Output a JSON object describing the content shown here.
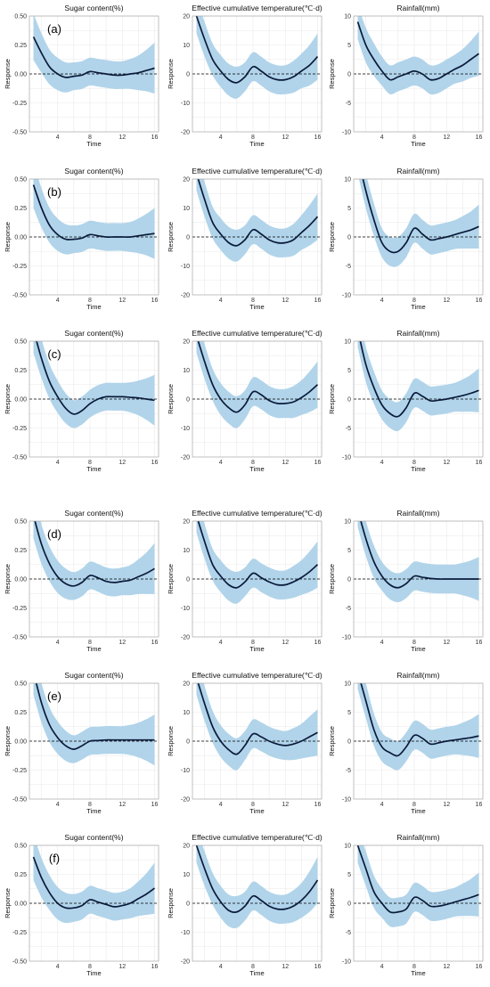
{
  "chart_data": {
    "type": "area",
    "description_rows": [
      "(a)",
      "(b)",
      "(c)",
      "(d)",
      "(e)",
      "(f)"
    ],
    "columns": [
      {
        "title": "Sugar content(%)",
        "ylim": [
          -0.5,
          0.5
        ],
        "yticks": [
          "0.50",
          "0.25",
          "0.00",
          "-0.25",
          "-0.50"
        ],
        "ytick_values": [
          0.5,
          0.25,
          0,
          -0.25,
          -0.5
        ]
      },
      {
        "title": "Effective cumulative temperature(℃·d)",
        "ylim": [
          -20,
          20
        ],
        "yticks": [
          "20",
          "10",
          "0",
          "-10",
          "-20"
        ],
        "ytick_values": [
          20,
          10,
          0,
          -10,
          -20
        ]
      },
      {
        "title": "Rainfall(mm)",
        "ylim": [
          -10,
          10
        ],
        "yticks": [
          "10",
          "5",
          "0",
          "-5",
          "-10"
        ],
        "ytick_values": [
          10,
          5,
          0,
          -5,
          -10
        ]
      }
    ],
    "xlabel": "Time",
    "ylabel": "Response",
    "xlim": [
      0.5,
      16.5
    ],
    "xticks": [
      "4",
      "8",
      "12",
      "16"
    ],
    "xtick_values": [
      4,
      8,
      12,
      16
    ],
    "x": [
      1,
      2,
      3,
      4,
      5,
      6,
      7,
      8,
      9,
      10,
      11,
      12,
      13,
      14,
      15,
      16
    ],
    "reference_line": 0,
    "colors": {
      "band": "#a9cfe8",
      "line": "#0b1a3a",
      "grid": "#e9e9e9"
    },
    "panels": [
      [
        {
          "label": "(a)",
          "fit": [
            0.32,
            0.18,
            0.06,
            0.0,
            -0.03,
            -0.02,
            -0.01,
            0.02,
            0.01,
            0,
            -0.01,
            -0.01,
            0,
            0.01,
            0.03,
            0.05
          ],
          "band": [
            0.2,
            0.17,
            0.15,
            0.14,
            0.13,
            0.12,
            0.12,
            0.12,
            0.12,
            0.12,
            0.12,
            0.12,
            0.13,
            0.15,
            0.18,
            0.22
          ]
        },
        {
          "label": "",
          "fit": [
            20,
            12,
            5,
            1,
            -2,
            -3,
            -1,
            2.5,
            1,
            -1,
            -2,
            -2,
            -1,
            1,
            3,
            6
          ],
          "band": [
            6,
            6,
            5.5,
            5.5,
            5.5,
            5.5,
            5,
            5,
            5,
            5,
            5,
            5,
            5.5,
            6,
            7,
            8
          ]
        },
        {
          "label": "",
          "fit": [
            9,
            5,
            2.5,
            0.5,
            -1,
            -0.5,
            0,
            0.5,
            0,
            -1,
            -0.8,
            0,
            0.8,
            1.5,
            2.5,
            3.5
          ],
          "band": [
            3,
            3,
            2.8,
            2.5,
            2.5,
            2.5,
            2.5,
            2.5,
            2.5,
            2.5,
            2.5,
            2.5,
            2.5,
            2.8,
            3.2,
            3.8
          ]
        }
      ],
      [
        {
          "label": "(b)",
          "fit": [
            0.45,
            0.25,
            0.1,
            0.02,
            -0.02,
            -0.02,
            -0.01,
            0.02,
            0.01,
            0,
            0,
            0,
            0,
            0.01,
            0.02,
            0.03
          ],
          "band": [
            0.2,
            0.17,
            0.15,
            0.14,
            0.13,
            0.12,
            0.12,
            0.12,
            0.12,
            0.12,
            0.12,
            0.12,
            0.13,
            0.15,
            0.18,
            0.22
          ]
        },
        {
          "label": "",
          "fit": [
            22,
            13,
            5,
            1,
            -2,
            -3,
            -1,
            2.5,
            1,
            -1,
            -2,
            -2,
            -1,
            1.5,
            4,
            7
          ],
          "band": [
            6,
            6,
            5.5,
            5.5,
            5.5,
            5.5,
            5,
            5,
            5,
            5,
            5,
            5,
            5.5,
            6,
            7,
            8
          ]
        },
        {
          "label": "",
          "fit": [
            14,
            8,
            3,
            -1,
            -2.5,
            -2.5,
            -1,
            1.5,
            0.5,
            -0.5,
            -0.3,
            0,
            0.4,
            0.8,
            1.2,
            1.8
          ],
          "band": [
            3,
            3,
            2.8,
            2.5,
            2.5,
            2.5,
            2.5,
            2.5,
            2.5,
            2.5,
            2.5,
            2.5,
            2.5,
            2.8,
            3.2,
            3.8
          ]
        }
      ],
      [
        {
          "label": "(c)",
          "fit": [
            0.6,
            0.35,
            0.15,
            0.02,
            -0.08,
            -0.13,
            -0.1,
            -0.04,
            0,
            0.02,
            0.02,
            0.02,
            0.015,
            0.01,
            0,
            -0.01
          ],
          "band": [
            0.2,
            0.17,
            0.15,
            0.14,
            0.13,
            0.12,
            0.12,
            0.12,
            0.12,
            0.12,
            0.12,
            0.12,
            0.13,
            0.15,
            0.18,
            0.22
          ]
        },
        {
          "label": "",
          "fit": [
            22,
            13,
            5,
            0,
            -3,
            -4.5,
            -2,
            2.5,
            1.5,
            -0.5,
            -1.5,
            -1.5,
            -1,
            0.5,
            2.5,
            5
          ],
          "band": [
            6,
            6,
            5.5,
            5.5,
            5.5,
            5.5,
            5,
            5,
            5,
            5,
            5,
            5,
            5.5,
            6,
            7,
            8
          ]
        },
        {
          "label": "",
          "fit": [
            12,
            6,
            2,
            -1,
            -2.5,
            -3,
            -1.5,
            1,
            0.5,
            -0.3,
            -0.2,
            0,
            0.3,
            0.6,
            1,
            1.5
          ],
          "band": [
            3,
            3,
            2.8,
            2.5,
            2.5,
            2.5,
            2.5,
            2.5,
            2.5,
            2.5,
            2.5,
            2.5,
            2.5,
            2.8,
            3.2,
            3.8
          ]
        }
      ],
      [
        {
          "label": "(d)",
          "fit": [
            0.55,
            0.3,
            0.13,
            0.02,
            -0.04,
            -0.06,
            -0.03,
            0.03,
            0.01,
            -0.02,
            -0.03,
            -0.02,
            -0.01,
            0.02,
            0.05,
            0.09
          ],
          "band": [
            0.2,
            0.17,
            0.15,
            0.14,
            0.13,
            0.12,
            0.12,
            0.12,
            0.12,
            0.12,
            0.12,
            0.12,
            0.13,
            0.15,
            0.18,
            0.22
          ]
        },
        {
          "label": "",
          "fit": [
            22,
            13,
            5,
            1,
            -2,
            -3,
            -1,
            2,
            0.5,
            -1,
            -2,
            -2,
            -1,
            0.5,
            2.5,
            5
          ],
          "band": [
            6,
            6,
            5.5,
            5.5,
            5.5,
            5.5,
            5,
            5,
            5,
            5,
            5,
            5,
            5.5,
            6,
            7,
            8
          ]
        },
        {
          "label": "",
          "fit": [
            12,
            7,
            3,
            0.5,
            -1,
            -1.5,
            -0.8,
            0.5,
            0.3,
            0.1,
            0,
            0,
            0,
            0,
            0,
            0
          ],
          "band": [
            3,
            3,
            2.8,
            2.5,
            2.5,
            2.5,
            2.5,
            2.5,
            2.5,
            2.5,
            2.5,
            2.5,
            2.5,
            2.8,
            3.2,
            3.8
          ]
        }
      ],
      [
        {
          "label": "(e)",
          "fit": [
            0.6,
            0.33,
            0.14,
            0.03,
            -0.04,
            -0.07,
            -0.04,
            0,
            0.005,
            0.01,
            0.01,
            0.01,
            0.01,
            0.01,
            0.01,
            0.01
          ],
          "band": [
            0.2,
            0.17,
            0.15,
            0.14,
            0.13,
            0.12,
            0.12,
            0.12,
            0.12,
            0.12,
            0.12,
            0.12,
            0.13,
            0.15,
            0.18,
            0.22
          ]
        },
        {
          "label": "",
          "fit": [
            22,
            13,
            5,
            0,
            -3,
            -4.5,
            -1.5,
            2.5,
            1.5,
            0,
            -1,
            -1.5,
            -1,
            0,
            1.5,
            3
          ],
          "band": [
            6,
            6,
            5.5,
            5.5,
            5.5,
            5.5,
            5,
            5,
            5,
            5,
            5,
            5,
            5.5,
            6,
            7,
            8
          ]
        },
        {
          "label": "",
          "fit": [
            12,
            7,
            2,
            -1,
            -2,
            -2.5,
            -1,
            1,
            0.5,
            -0.5,
            -0.3,
            0,
            0.2,
            0.4,
            0.6,
            0.9
          ],
          "band": [
            3,
            3,
            2.8,
            2.5,
            2.5,
            2.5,
            2.5,
            2.5,
            2.5,
            2.5,
            2.5,
            2.5,
            2.5,
            2.8,
            3.2,
            3.8
          ]
        }
      ],
      [
        {
          "label": "(f)",
          "fit": [
            0.4,
            0.22,
            0.09,
            0,
            -0.04,
            -0.04,
            -0.02,
            0.03,
            0.01,
            -0.01,
            -0.03,
            -0.02,
            0,
            0.04,
            0.08,
            0.13
          ],
          "band": [
            0.2,
            0.17,
            0.15,
            0.14,
            0.13,
            0.12,
            0.12,
            0.12,
            0.12,
            0.12,
            0.12,
            0.12,
            0.13,
            0.15,
            0.18,
            0.22
          ]
        },
        {
          "label": "",
          "fit": [
            20,
            12,
            5,
            0.5,
            -2.5,
            -3,
            -1,
            2.5,
            1,
            -1,
            -2,
            -2,
            -1,
            1,
            4,
            8
          ],
          "band": [
            6,
            6,
            5.5,
            5.5,
            5.5,
            5.5,
            5,
            5,
            5,
            5,
            5,
            5,
            5.5,
            6,
            7,
            8
          ]
        },
        {
          "label": "",
          "fit": [
            10,
            6,
            2,
            0,
            -1.5,
            -1.5,
            -1,
            1,
            0.5,
            -0.5,
            -0.5,
            -0.2,
            0.2,
            0.6,
            1,
            1.5
          ],
          "band": [
            3,
            3,
            2.8,
            2.5,
            2.5,
            2.5,
            2.5,
            2.5,
            2.5,
            2.5,
            2.5,
            2.5,
            2.5,
            2.8,
            3.2,
            3.8
          ]
        }
      ]
    ]
  }
}
